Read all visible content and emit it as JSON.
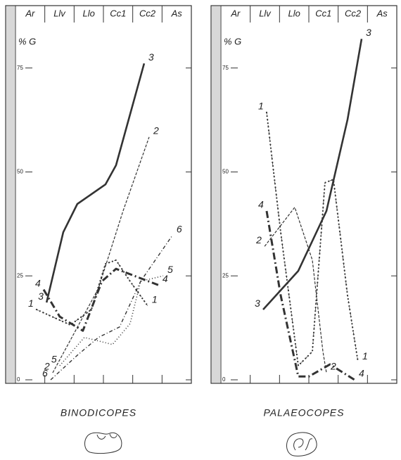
{
  "chart_data": [
    {
      "type": "line",
      "title": "BINODICOPES",
      "y_label": "% G",
      "categories": [
        "Ar",
        "Llv",
        "Llo",
        "Cc1",
        "Cc2",
        "As"
      ],
      "xlim": [
        0,
        6
      ],
      "ylim": [
        0,
        90
      ],
      "yticks": [
        0,
        25,
        50,
        75
      ],
      "series": [
        {
          "name": "1",
          "color": "#333333",
          "style": "dash-dot-dots",
          "x": [
            0.72,
            1.87,
            2.59,
            3.07,
            3.43,
            3.91,
            4.51
          ],
          "values": [
            16.9,
            13.2,
            16.9,
            27.9,
            28.8,
            23.7,
            17.8
          ]
        },
        {
          "name": "2",
          "color": "#333333",
          "style": "dashed",
          "x": [
            1.27,
            2.83,
            3.67,
            4.56
          ],
          "values": [
            1.7,
            22,
            40.6,
            58.4
          ]
        },
        {
          "name": "3",
          "color": "#333333",
          "style": "solid",
          "x": [
            1.06,
            1.63,
            2.11,
            3.07,
            3.43,
            4.39
          ],
          "values": [
            18.6,
            35.5,
            42.3,
            47,
            51.6,
            76.1
          ]
        },
        {
          "name": "4",
          "color": "#333333",
          "style": "thick-dash-dot",
          "x": [
            0.96,
            1.51,
            2.3,
            2.95,
            3.43,
            4.87
          ],
          "values": [
            21.7,
            15.2,
            11.8,
            23.7,
            26.7,
            22.8
          ]
        },
        {
          "name": "5",
          "color": "#333333",
          "style": "dotted",
          "x": [
            1.51,
            2.35,
            3.31,
            3.91,
            4.27,
            5.04
          ],
          "values": [
            3.4,
            10.2,
            8.5,
            13.5,
            23.7,
            25
          ]
        },
        {
          "name": "6",
          "color": "#333333",
          "style": "dash-dots",
          "x": [
            1.2,
            2.11,
            2.83,
            3.55,
            4.27,
            5.35
          ],
          "values": [
            0,
            5.9,
            10.2,
            12.7,
            23.7,
            34.7
          ]
        }
      ]
    },
    {
      "type": "line",
      "title": "PALAEOCOPES",
      "y_label": "% G",
      "categories": [
        "Ar",
        "Llv",
        "Llo",
        "Cc1",
        "Cc2",
        "As"
      ],
      "xlim": [
        0,
        6
      ],
      "ylim": [
        0,
        90
      ],
      "yticks": [
        0,
        25,
        50,
        75
      ],
      "series": [
        {
          "name": "1",
          "color": "#333333",
          "style": "dash-dot-dots",
          "x": [
            1.56,
            2.04,
            2.64,
            3.12,
            3.55,
            3.84,
            4.32,
            4.68
          ],
          "values": [
            64.3,
            35.5,
            3.4,
            6.8,
            47.4,
            48.2,
            20.3,
            4.2
          ]
        },
        {
          "name": "2",
          "color": "#333333",
          "style": "dashed",
          "x": [
            1.49,
            2.52,
            3.12,
            3.48,
            3.6
          ],
          "values": [
            32.1,
            41.5,
            28.8,
            6.8,
            1.7
          ]
        },
        {
          "name": "3",
          "color": "#333333",
          "style": "solid",
          "x": [
            1.44,
            2.64,
            3.6,
            4.32,
            4.8
          ],
          "values": [
            16.9,
            26.2,
            40.6,
            62.6,
            82
          ]
        },
        {
          "name": "4",
          "color": "#333333",
          "style": "thick-dash-dot",
          "x": [
            1.56,
            2.04,
            2.64,
            3,
            3.72,
            4.56
          ],
          "values": [
            40.6,
            20.3,
            0.8,
            0.8,
            3.7,
            0
          ]
        }
      ]
    }
  ]
}
